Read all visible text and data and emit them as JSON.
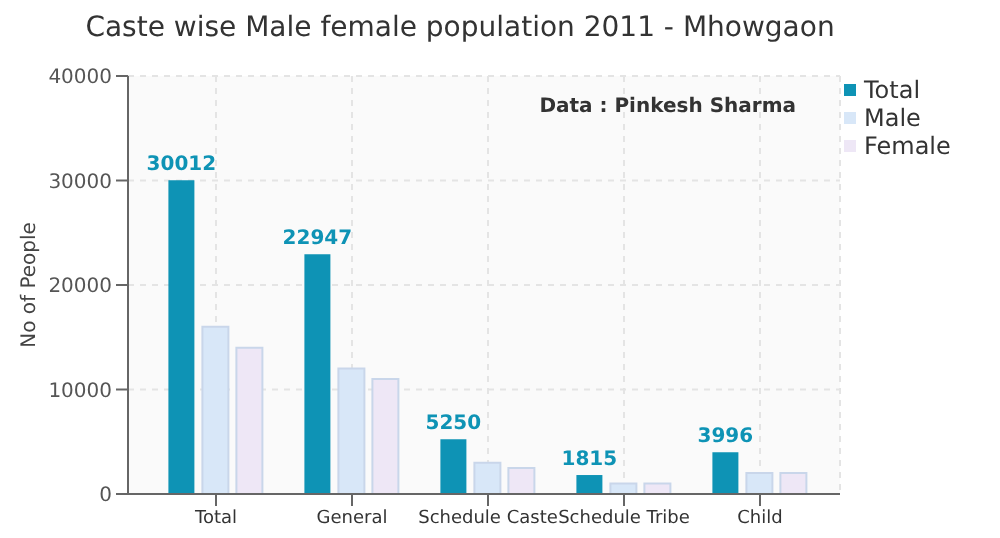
{
  "chart_data": {
    "type": "bar",
    "title": "Caste wise Male female population 2011 - Mhowgaon",
    "ylabel": "No of People",
    "annotations": [
      "Data : Pinkesh Sharma"
    ],
    "categories": [
      "Total",
      "General",
      "Schedule Caste",
      "Schedule Tribe",
      "Child"
    ],
    "series": [
      {
        "name": "Total",
        "color": "#0e93b5",
        "values": [
          30012,
          22947,
          5250,
          1815,
          3996
        ],
        "value_labels": [
          "30012",
          "22947",
          "5250",
          "1815",
          "3996"
        ]
      },
      {
        "name": "Male",
        "color": "#d8e7f8",
        "values": [
          16000,
          12000,
          3000,
          1000,
          2000
        ]
      },
      {
        "name": "Female",
        "color": "#eee7f6",
        "values": [
          14000,
          11000,
          2500,
          1000,
          2000
        ]
      }
    ],
    "ylim": [
      0,
      40000
    ],
    "yticks": [
      0,
      10000,
      20000,
      30000,
      40000
    ],
    "grid": true,
    "legend": "top right"
  }
}
